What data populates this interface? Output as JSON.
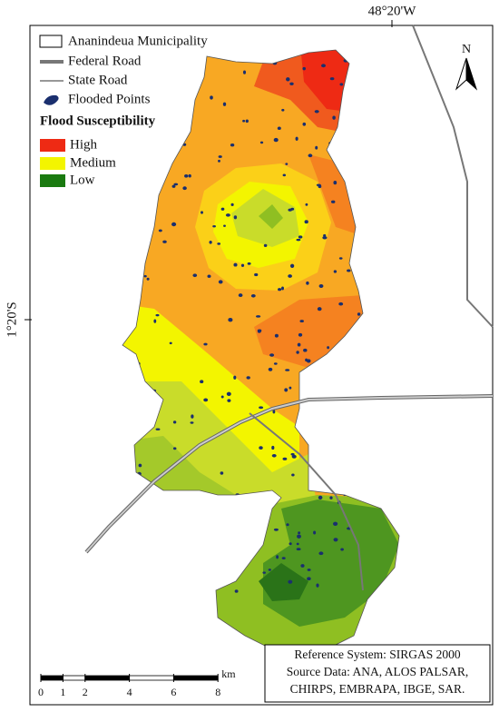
{
  "coordinates": {
    "longitude": "48°20'W",
    "latitude": "1°20'S"
  },
  "north_arrow": "N",
  "legend": {
    "items": [
      "Ananindeua Municipality",
      "Federal Road",
      "State Road",
      "Flooded Points"
    ],
    "title": "Flood Susceptibility",
    "classes": [
      "High",
      "Medium",
      "Low"
    ]
  },
  "scale_bar": {
    "ticks": [
      0,
      1,
      2,
      4,
      6,
      8
    ],
    "unit": "km"
  },
  "info_box": [
    "Reference System: SIRGAS 2000",
    "Source Data: ANA, ALOS PALSAR,",
    "CHIRPS, EMBRAPA, IBGE, SAR."
  ]
}
